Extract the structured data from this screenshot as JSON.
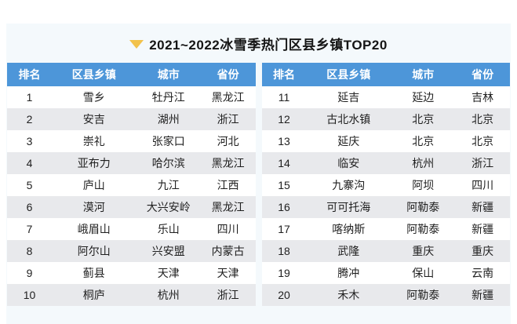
{
  "title": {
    "text": "2021~2022冰雪季热门区县乡镇TOP20"
  },
  "icons": {
    "triangle_down": "triangle-down-icon"
  },
  "colors": {
    "header_bg": "#4d96d9",
    "header_text": "#ffffff",
    "row_bg": "#ffffff",
    "row_alt_bg": "#e8e9ec",
    "panel_bg": "#f4f9fc",
    "page_bg": "#ffffff",
    "title_text": "#151515",
    "body_text": "#1f1f1f",
    "triangle_icon": "#f2c24b"
  },
  "chart_data": {
    "type": "table",
    "title": "2021~2022冰雪季热门区县乡镇TOP20",
    "columns": [
      "排名",
      "区县乡镇",
      "城市",
      "省份"
    ],
    "layout": "two side-by-side tables, rows 1-10 left, rows 11-20 right, alternating row shading",
    "rows": [
      [
        "1",
        "雪乡",
        "牡丹江",
        "黑龙江"
      ],
      [
        "2",
        "安吉",
        "湖州",
        "浙江"
      ],
      [
        "3",
        "崇礼",
        "张家口",
        "河北"
      ],
      [
        "4",
        "亚布力",
        "哈尔滨",
        "黑龙江"
      ],
      [
        "5",
        "庐山",
        "九江",
        "江西"
      ],
      [
        "6",
        "漠河",
        "大兴安岭",
        "黑龙江"
      ],
      [
        "7",
        "峨眉山",
        "乐山",
        "四川"
      ],
      [
        "8",
        "阿尔山",
        "兴安盟",
        "内蒙古"
      ],
      [
        "9",
        "蓟县",
        "天津",
        "天津"
      ],
      [
        "10",
        "桐庐",
        "杭州",
        "浙江"
      ],
      [
        "11",
        "延吉",
        "延边",
        "吉林"
      ],
      [
        "12",
        "古北水镇",
        "北京",
        "北京"
      ],
      [
        "13",
        "延庆",
        "北京",
        "北京"
      ],
      [
        "14",
        "临安",
        "杭州",
        "浙江"
      ],
      [
        "15",
        "九寨沟",
        "阿坝",
        "四川"
      ],
      [
        "16",
        "可可托海",
        "阿勒泰",
        "新疆"
      ],
      [
        "17",
        "喀纳斯",
        "阿勒泰",
        "新疆"
      ],
      [
        "18",
        "武隆",
        "重庆",
        "重庆"
      ],
      [
        "19",
        "腾冲",
        "保山",
        "云南"
      ],
      [
        "20",
        "禾木",
        "阿勒泰",
        "新疆"
      ]
    ]
  }
}
